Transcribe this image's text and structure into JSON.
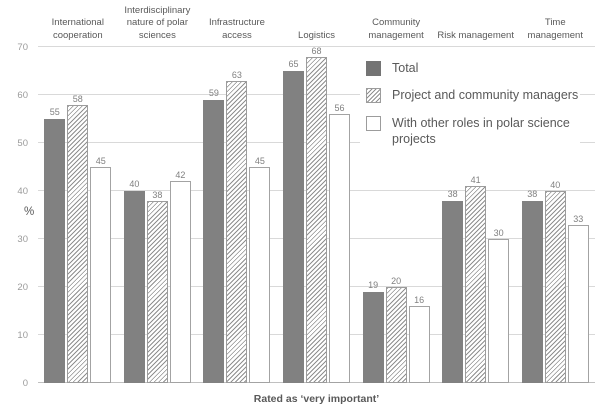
{
  "chart_data": {
    "type": "bar",
    "title": "",
    "xlabel": "Rated as ‘very important’",
    "ylabel": "%",
    "ylim": [
      0,
      70
    ],
    "yticks": [
      0,
      10,
      20,
      30,
      40,
      50,
      60,
      70
    ],
    "grid": true,
    "legend_position": "inside-top-right",
    "categories": [
      "International cooperation",
      "Interdisciplinary nature of polar sciences",
      "Infrastructure access",
      "Logistics",
      "Community management",
      "Risk management",
      "Time management"
    ],
    "category_label_lines": [
      [
        "International",
        "cooperation"
      ],
      [
        "Interdisciplinary",
        "nature of polar",
        "sciences"
      ],
      [
        "Infrastructure",
        "access"
      ],
      [
        "Logistics"
      ],
      [
        "Community",
        "management"
      ],
      [
        "Risk management"
      ],
      [
        "Time",
        "management"
      ]
    ],
    "series": [
      {
        "name": "Total",
        "style": "solid",
        "color": "#818181",
        "values": [
          55,
          40,
          59,
          65,
          19,
          38,
          38
        ]
      },
      {
        "name": "Project and community managers",
        "style": "hatch",
        "color": "#8f8f8f",
        "values": [
          58,
          38,
          63,
          68,
          20,
          41,
          40
        ]
      },
      {
        "name": "With other roles in polar science projects",
        "style": "outline",
        "color": "#ffffff",
        "values": [
          45,
          42,
          45,
          56,
          16,
          30,
          33
        ]
      }
    ],
    "colors": {
      "gridline": "#d9d9d9",
      "axis_line": "#c0c0c0",
      "tick_text": "#9b9b9b",
      "label_text": "#595959",
      "data_label_text": "#808080"
    }
  }
}
